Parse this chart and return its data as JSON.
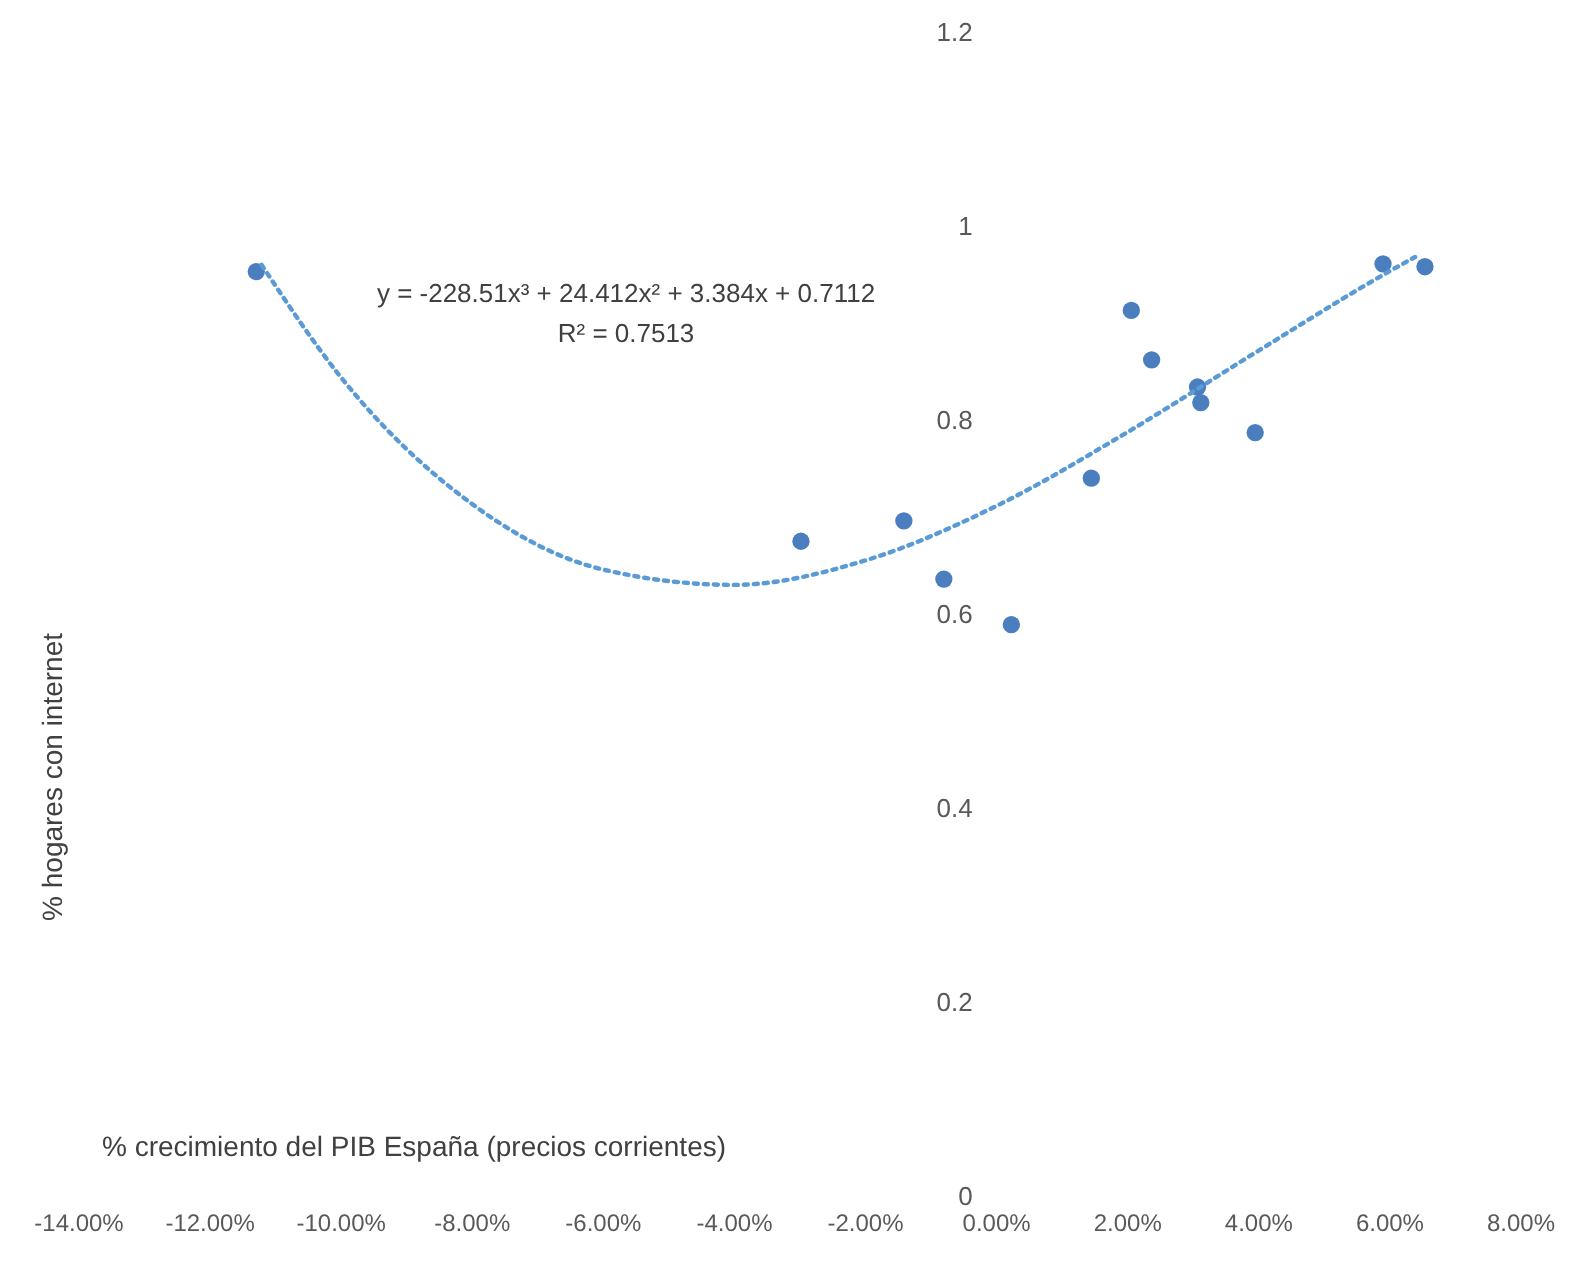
{
  "chart_data": {
    "type": "line",
    "xlabel": "% crecimiento del PIB España (precios corrientes)",
    "ylabel": "% hogares con internet",
    "x": [
      -0.1128,
      -0.0297,
      -0.014,
      -0.0079,
      0.0024,
      0.0146,
      0.0207,
      0.0238,
      0.0308,
      0.0313,
      0.0396,
      0.0591,
      0.0655
    ],
    "series": [
      {
        "type": "scatter",
        "color": "#4a7ebf",
        "marker": "circle",
        "values": [
          0.953,
          0.675,
          0.696,
          0.636,
          0.589,
          0.74,
          0.913,
          0.862,
          0.834,
          0.818,
          0.787,
          0.961,
          0.958
        ]
      },
      {
        "color": "#5b9bd5",
        "line_style": "dotted",
        "marker": "none",
        "x": [
          -0.112,
          -0.1,
          -0.08,
          -0.06,
          -0.04,
          -0.02,
          0,
          0.02,
          0.04,
          0.06,
          0.064
        ],
        "values": [
          0.96,
          0.845,
          0.714,
          0.646,
          0.63,
          0.655,
          0.711,
          0.787,
          0.871,
          0.953,
          0.968
        ]
      }
    ],
    "annotations": [
      "y = -228.51x³ + 24.412x² + 3.384x + 0.7112",
      "R² = 0.7513"
    ],
    "xlim": [
      -0.14,
      0.08
    ],
    "xticks": [
      {
        "value": -0.14,
        "label": "-14.00%"
      },
      {
        "value": -0.12,
        "label": "-12.00%"
      },
      {
        "value": -0.1,
        "label": "-10.00%"
      },
      {
        "value": -0.08,
        "label": "-8.00%"
      },
      {
        "value": -0.06,
        "label": "-6.00%"
      },
      {
        "value": -0.04,
        "label": "-4.00%"
      },
      {
        "value": -0.02,
        "label": "-2.00%"
      },
      {
        "value": 0,
        "label": "0.00%"
      },
      {
        "value": 0.02,
        "label": "2.00%"
      },
      {
        "value": 0.04,
        "label": "4.00%"
      },
      {
        "value": 0.06,
        "label": "6.00%"
      },
      {
        "value": 0.08,
        "label": "8.00%"
      }
    ],
    "ylim": [
      0,
      1.2
    ],
    "yticks": [
      0,
      0.2,
      0.4,
      0.6,
      0.8,
      1,
      1.2
    ],
    "grid": false
  }
}
